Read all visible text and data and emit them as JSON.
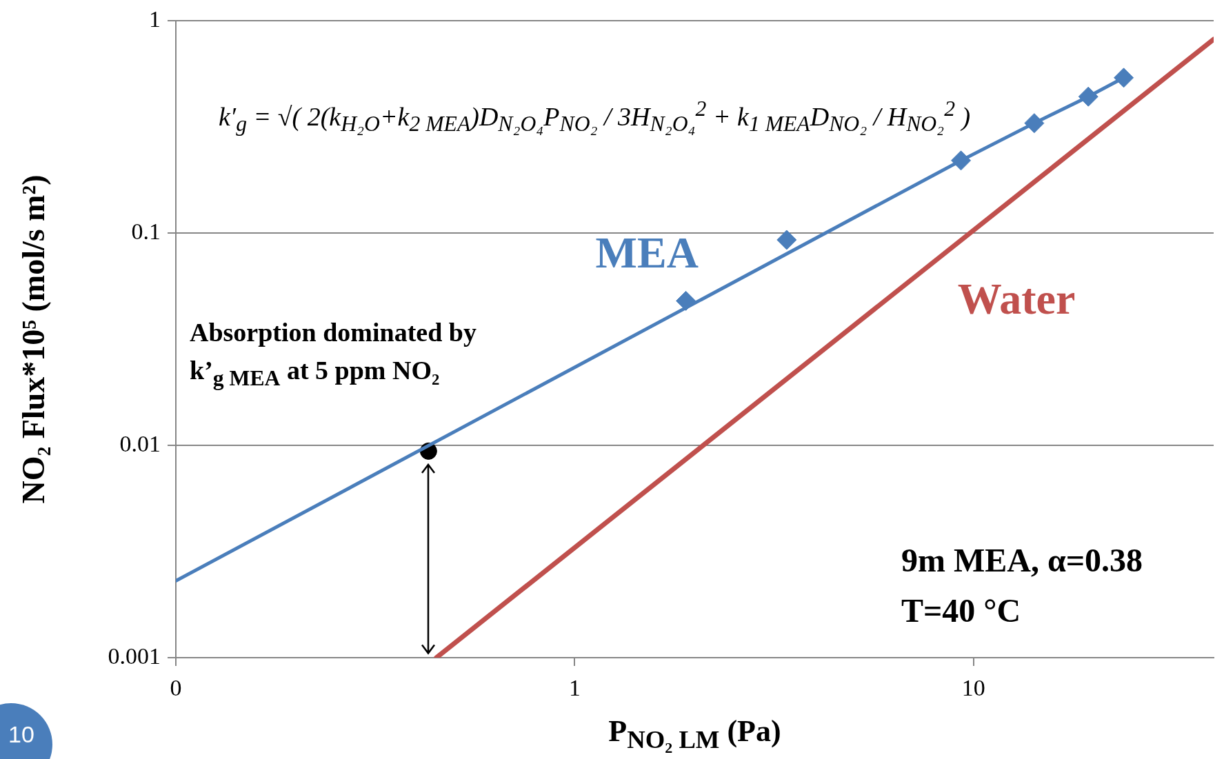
{
  "chart_data": {
    "type": "line",
    "xlabel": "P$_{NO₂ LM}$ (Pa)",
    "ylabel": "NO₂ Flux*10⁵ (mol/s m²)",
    "log": "xy",
    "grid": "y",
    "xlim": [
      0.1,
      40
    ],
    "xticks": [
      {
        "value": 0.1,
        "label": "0"
      },
      1,
      10
    ],
    "ylim": [
      0.001,
      1
    ],
    "yticks": [
      0.001,
      0.01,
      0.1,
      1
    ],
    "series": [
      {
        "type": "scatter",
        "marker": "diamond",
        "color": "#4a7ebb",
        "x": [
          1.9,
          3.4,
          9.3,
          14.2,
          19.4,
          23.8
        ],
        "values": [
          0.048,
          0.093,
          0.22,
          0.33,
          0.44,
          0.54
        ]
      },
      {
        "name": "MEA",
        "color": "#4a7ebb",
        "x": [
          0.1,
          9.3,
          14.2,
          19.4,
          23.8
        ],
        "values": [
          0.0023,
          0.22,
          0.33,
          0.44,
          0.54
        ]
      },
      {
        "name": "Water",
        "color": "#c0504d",
        "x": [
          0.45,
          40
        ],
        "values": [
          0.001,
          0.82
        ]
      },
      {
        "type": "scatter",
        "marker": "circle",
        "color": "#000000",
        "x": [
          0.43
        ],
        "values": [
          0.0094
        ]
      }
    ],
    "annotations": [
      "k′$_{g}$ = √( 2(k$_{H₂O}$+k$_{2 MEA}$)D$_{N₂O₄}$P$_{NO₂}$ / 3H$_{N₂O₄}$$^{2}$ + k$_{1 MEA}$D$_{NO₂}$ / H$_{NO₂}$$^{2}$ )",
      "Absorption dominated by k’$_{g MEA}$ at 5 ppm NO₂",
      "9m MEA, α=0.38",
      "T=40 °C",
      "10"
    ]
  }
}
